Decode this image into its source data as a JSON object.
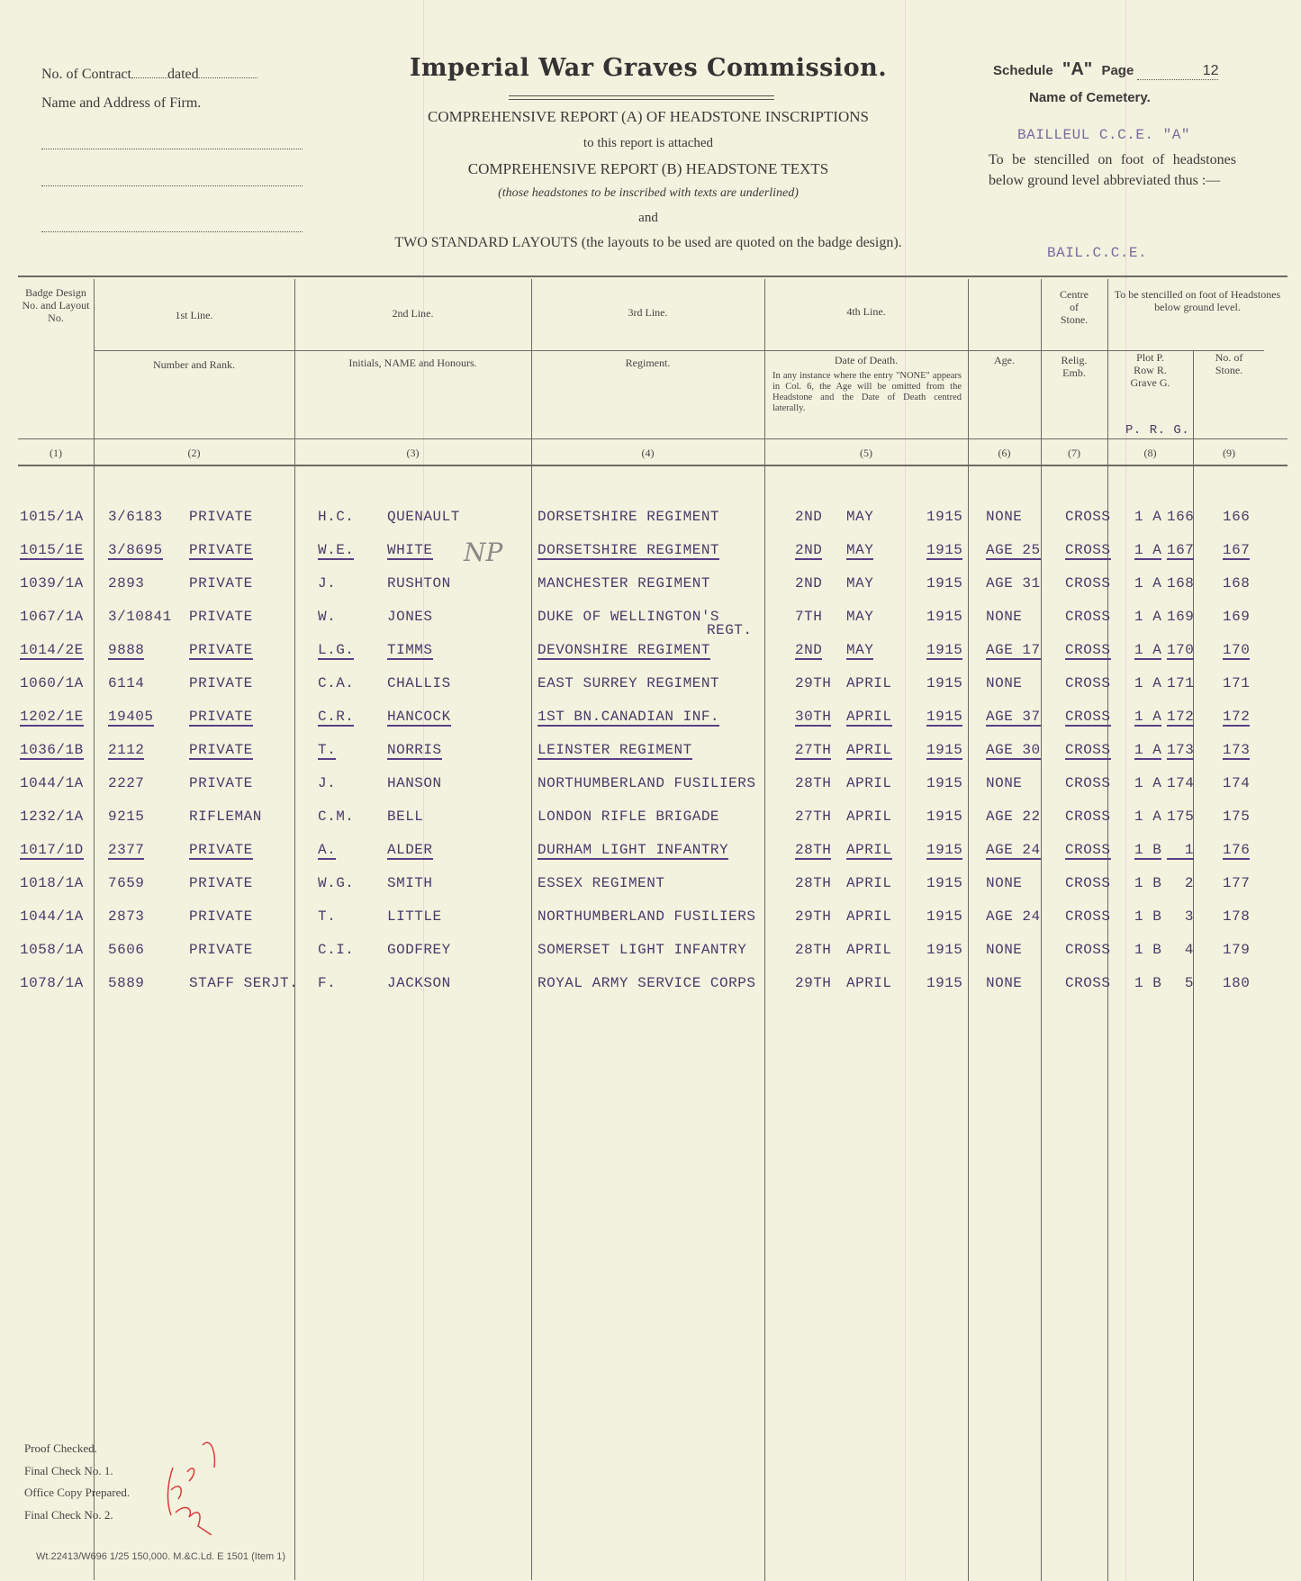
{
  "form": {
    "contract_label": "No. of Contract",
    "dated_label": "dated",
    "firm_label": "Name and Address of Firm.",
    "title": "Imperial War Graves Commission.",
    "report_a": "COMPREHENSIVE REPORT (A) OF HEADSTONE INSCRIPTIONS",
    "attached": "to this report is attached",
    "report_b": "COMPREHENSIVE REPORT (B) HEADSTONE TEXTS",
    "underlined_note": "(those headstones to be inscribed with texts are underlined)",
    "and": "and",
    "layouts": "TWO STANDARD LAYOUTS (the layouts to be used are quoted on the badge design).",
    "schedule_label": "Schedule",
    "schedule_value": "\"A\"",
    "page_label": "Page",
    "page_value": "12",
    "cemetery_label": "Name of Cemetery.",
    "cemetery_value": "BAILLEUL C.C.E. \"A\"",
    "stencil_note": "To be stencilled on foot of headstones below ground level abbreviated thus :—",
    "abbrev_value": "BAIL.C.C.E."
  },
  "columns": {
    "c1": "Badge Design No. and Layout No.",
    "c2_top": "1st Line.",
    "c2_sub": "Number and Rank.",
    "c3_top": "2nd Line.",
    "c3_sub": "Initials, NAME and Honours.",
    "c4_top": "3rd Line.",
    "c4_sub": "Regiment.",
    "c5_top": "4th Line.",
    "c5_sub": "Date of Death.",
    "c5_note": "In any instance where the entry \"NONE\" appears in Col. 6, the Age will be omitted from the Headstone and the Date of Death centred laterally.",
    "c6_sub": "Age.",
    "c7_top": "Centre of Stone.",
    "c7_sub": "Relig. Emb.",
    "c89_top": "To be stencilled on foot of Headstones below ground level.",
    "c8_sub": "Plot P. Row R. Grave G.",
    "c8_typed": "P. R. G.",
    "c9_sub": "No. of Stone.",
    "numbers": [
      "(1)",
      "(2)",
      "(3)",
      "(4)",
      "(5)",
      "(6)",
      "(7)",
      "(8)",
      "(9)"
    ]
  },
  "rows": [
    {
      "badge": "1015/1A",
      "number": "3/6183",
      "rank": "PRIVATE",
      "initials": "H.C.",
      "name": "QUENAULT",
      "regiment": "DORSETSHIRE REGIMENT",
      "day": "2ND",
      "month": "MAY",
      "year": "1915",
      "age": "NONE",
      "relig": "CROSS",
      "plot_row": "1 A",
      "grave": "166",
      "stone": "166",
      "underlined": false
    },
    {
      "badge": "1015/1E",
      "number": "3/8695",
      "rank": "PRIVATE",
      "initials": "W.E.",
      "name": "WHITE",
      "regiment": "DORSETSHIRE REGIMENT",
      "day": "2ND",
      "month": "MAY",
      "year": "1915",
      "age": "AGE 25",
      "relig": "CROSS",
      "plot_row": "1 A",
      "grave": "167",
      "stone": "167",
      "underlined": true
    },
    {
      "badge": "1039/1A",
      "number": "2893",
      "rank": "PRIVATE",
      "initials": "J.",
      "name": "RUSHTON",
      "regiment": "MANCHESTER REGIMENT",
      "day": "2ND",
      "month": "MAY",
      "year": "1915",
      "age": "AGE 31",
      "relig": "CROSS",
      "plot_row": "1 A",
      "grave": "168",
      "stone": "168",
      "underlined": false
    },
    {
      "badge": "1067/1A",
      "number": "3/10841",
      "rank": "PRIVATE",
      "initials": "W.",
      "name": "JONES",
      "regiment": "DUKE OF WELLINGTON'S",
      "regiment2": "REGT.",
      "day": "7TH",
      "month": "MAY",
      "year": "1915",
      "age": "NONE",
      "relig": "CROSS",
      "plot_row": "1 A",
      "grave": "169",
      "stone": "169",
      "underlined": false
    },
    {
      "badge": "1014/2E",
      "number": "9888",
      "rank": "PRIVATE",
      "initials": "L.G.",
      "name": "TIMMS",
      "regiment": "DEVONSHIRE REGIMENT",
      "day": "2ND",
      "month": "MAY",
      "year": "1915",
      "age": "AGE 17",
      "relig": "CROSS",
      "plot_row": "1 A",
      "grave": "170",
      "stone": "170",
      "underlined": true
    },
    {
      "badge": "1060/1A",
      "number": "6114",
      "rank": "PRIVATE",
      "initials": "C.A.",
      "name": "CHALLIS",
      "regiment": "EAST SURREY REGIMENT",
      "day": "29TH",
      "month": "APRIL",
      "year": "1915",
      "age": "NONE",
      "relig": "CROSS",
      "plot_row": "1 A",
      "grave": "171",
      "stone": "171",
      "underlined": false
    },
    {
      "badge": "1202/1E",
      "number": "19405",
      "rank": "PRIVATE",
      "initials": "C.R.",
      "name": "HANCOCK",
      "regiment": "1ST BN.CANADIAN INF.",
      "day": "30TH",
      "month": "APRIL",
      "year": "1915",
      "age": "AGE 37",
      "relig": "CROSS",
      "plot_row": "1 A",
      "grave": "172",
      "stone": "172",
      "underlined": true
    },
    {
      "badge": "1036/1B",
      "number": "2112",
      "rank": "PRIVATE",
      "initials": "T.",
      "name": "NORRIS",
      "regiment": "LEINSTER REGIMENT",
      "day": "27TH",
      "month": "APRIL",
      "year": "1915",
      "age": "AGE 30",
      "relig": "CROSS",
      "plot_row": "1 A",
      "grave": "173",
      "stone": "173",
      "underlined": true
    },
    {
      "badge": "1044/1A",
      "number": "2227",
      "rank": "PRIVATE",
      "initials": "J.",
      "name": "HANSON",
      "regiment": "NORTHUMBERLAND FUSILIERS",
      "day": "28TH",
      "month": "APRIL",
      "year": "1915",
      "age": "NONE",
      "relig": "CROSS",
      "plot_row": "1 A",
      "grave": "174",
      "stone": "174",
      "underlined": false
    },
    {
      "badge": "1232/1A",
      "number": "9215",
      "rank": "RIFLEMAN",
      "initials": "C.M.",
      "name": "BELL",
      "regiment": "LONDON RIFLE BRIGADE",
      "day": "27TH",
      "month": "APRIL",
      "year": "1915",
      "age": "AGE 22",
      "relig": "CROSS",
      "plot_row": "1 A",
      "grave": "175",
      "stone": "175",
      "underlined": false
    },
    {
      "badge": "1017/1D",
      "number": "2377",
      "rank": "PRIVATE",
      "initials": "A.",
      "name": "ALDER",
      "regiment": "DURHAM LIGHT INFANTRY",
      "day": "28TH",
      "month": "APRIL",
      "year": "1915",
      "age": "AGE 24",
      "relig": "CROSS",
      "plot_row": "1 B",
      "grave": "1",
      "stone": "176",
      "underlined": true
    },
    {
      "badge": "1018/1A",
      "number": "7659",
      "rank": "PRIVATE",
      "initials": "W.G.",
      "name": "SMITH",
      "regiment": "ESSEX REGIMENT",
      "day": "28TH",
      "month": "APRIL",
      "year": "1915",
      "age": "NONE",
      "relig": "CROSS",
      "plot_row": "1 B",
      "grave": "2",
      "stone": "177",
      "underlined": false
    },
    {
      "badge": "1044/1A",
      "number": "2873",
      "rank": "PRIVATE",
      "initials": "T.",
      "name": "LITTLE",
      "regiment": "NORTHUMBERLAND FUSILIERS",
      "day": "29TH",
      "month": "APRIL",
      "year": "1915",
      "age": "AGE 24",
      "relig": "CROSS",
      "plot_row": "1 B",
      "grave": "3",
      "stone": "178",
      "underlined": false
    },
    {
      "badge": "1058/1A",
      "number": "5606",
      "rank": "PRIVATE",
      "initials": "C.I.",
      "name": "GODFREY",
      "regiment": "SOMERSET LIGHT INFANTRY",
      "day": "28TH",
      "month": "APRIL",
      "year": "1915",
      "age": "NONE",
      "relig": "CROSS",
      "plot_row": "1 B",
      "grave": "4",
      "stone": "179",
      "underlined": false
    },
    {
      "badge": "1078/1A",
      "number": "5889",
      "rank": "STAFF SERJT.",
      "initials": "F.",
      "name": "JACKSON",
      "regiment": "ROYAL ARMY SERVICE CORPS",
      "day": "29TH",
      "month": "APRIL",
      "year": "1915",
      "age": "NONE",
      "relig": "CROSS",
      "plot_row": "1 B",
      "grave": "5",
      "stone": "180",
      "underlined": false
    }
  ],
  "annotation": "NP",
  "footer": {
    "checks": [
      "Proof Checked.",
      "Final Check No. 1.",
      "Office Copy Prepared.",
      "Final Check No. 2."
    ],
    "initials": "R.E.P.",
    "print_code": "Wt.22413/W696  1/25  150,000.  M.&C.Ld.  E 1501 (Item 1)"
  },
  "colors": {
    "paper": "#f3f2de",
    "typewriter": "#4a3a6a",
    "signature": "#d83a3a"
  }
}
